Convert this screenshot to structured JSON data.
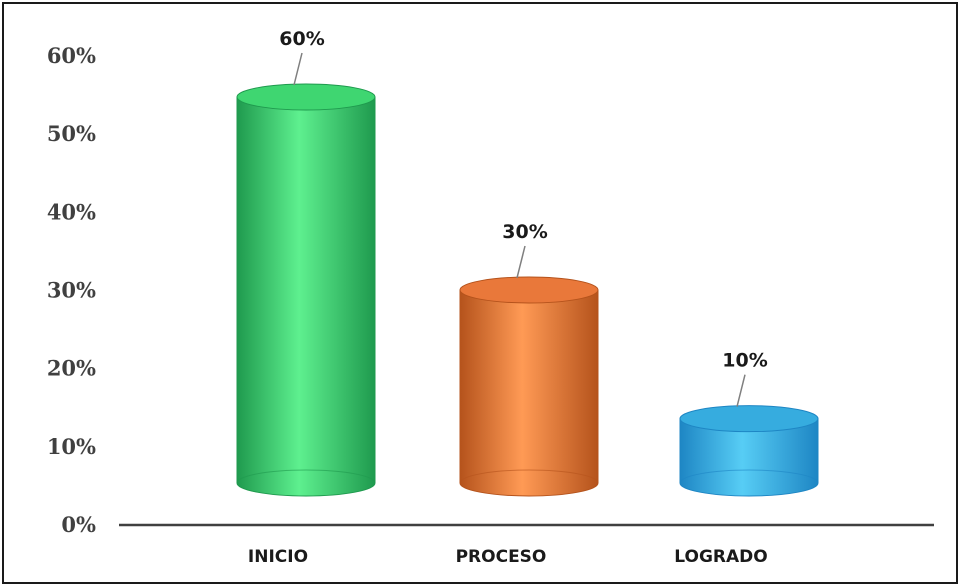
{
  "chart_data": {
    "type": "bar",
    "style": "3d-cylinder",
    "categories": [
      "INICIO",
      "PROCESO",
      "LOGRADO"
    ],
    "values": [
      60,
      30,
      10
    ],
    "data_labels": [
      "60%",
      "30%",
      "10%"
    ],
    "y_ticks": [
      "0%",
      "10%",
      "20%",
      "30%",
      "40%",
      "50%",
      "60%"
    ],
    "ylim": [
      0,
      60
    ],
    "unit": "%",
    "grid": false,
    "legend": "none",
    "colors": {
      "INICIO": {
        "dark": "#1f9a4e",
        "light": "#5ef08f",
        "top": "#3fd671"
      },
      "PROCESO": {
        "dark": "#b5531c",
        "light": "#ff9a55",
        "top": "#e9783a"
      },
      "LOGRADO": {
        "dark": "#1e86c4",
        "light": "#57cdf5",
        "top": "#36acdf"
      }
    }
  }
}
